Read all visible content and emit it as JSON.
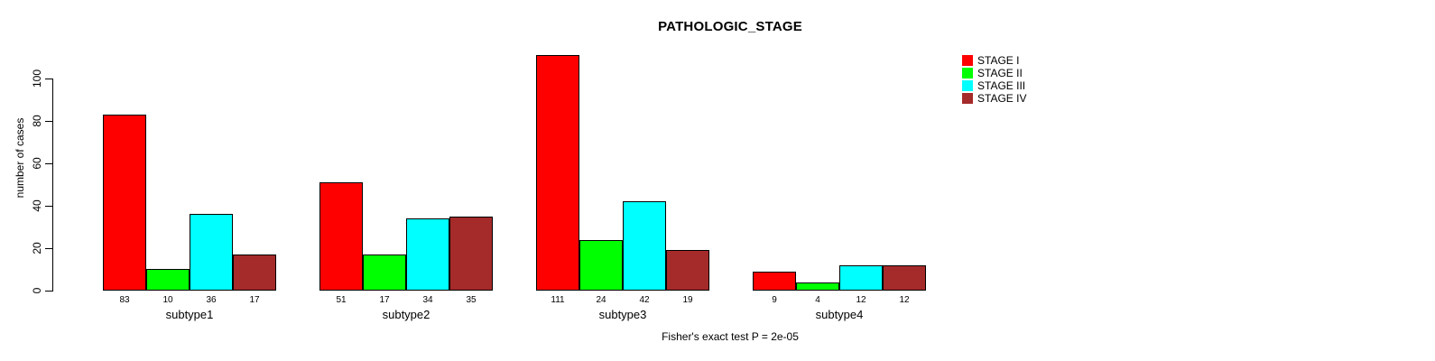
{
  "chart_data": {
    "type": "bar",
    "title": "PATHOLOGIC_STAGE",
    "xlabel": "",
    "ylabel": "number of cases",
    "categories": [
      "subtype1",
      "subtype2",
      "subtype3",
      "subtype4"
    ],
    "series": [
      {
        "name": "STAGE I",
        "color": "#FF0000",
        "values": [
          83,
          51,
          111,
          9
        ]
      },
      {
        "name": "STAGE II",
        "color": "#00FF00",
        "values": [
          10,
          17,
          24,
          4
        ]
      },
      {
        "name": "STAGE III",
        "color": "#00FFFF",
        "values": [
          36,
          34,
          42,
          12
        ]
      },
      {
        "name": "STAGE IV",
        "color": "#A52A2A",
        "values": [
          17,
          35,
          19,
          12
        ]
      }
    ],
    "yticks": [
      0,
      20,
      40,
      60,
      80,
      100
    ],
    "ylim": [
      0,
      111
    ],
    "grid": false,
    "legend_position": "top-right",
    "bar_value_labels_shown": true,
    "bar_border_color": "#000000"
  },
  "annotation": {
    "fisher_test": "Fisher's exact test P = 2e-05"
  }
}
